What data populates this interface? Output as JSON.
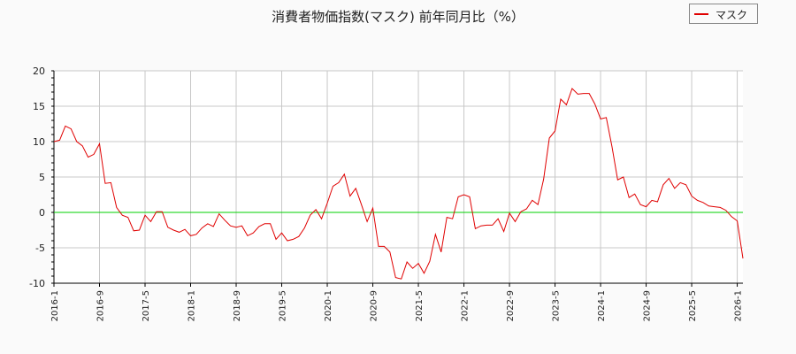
{
  "chart_data": {
    "type": "line",
    "title": "消費者物価指数(マスク) 前年同月比（%）",
    "xlabel": "",
    "ylabel": "",
    "ylim": [
      -10,
      20
    ],
    "yticks": [
      -10,
      -5,
      0,
      5,
      10,
      15,
      20
    ],
    "xtick_labels": [
      "2016-1",
      "2016-9",
      "2017-5",
      "2018-1",
      "2018-9",
      "2019-5",
      "2020-1",
      "2020-9",
      "2021-5",
      "2022-1",
      "2022-9",
      "2023-5",
      "2024-1",
      "2024-9",
      "2025-5",
      "2026-1"
    ],
    "grid": true,
    "legend_position": "top-right",
    "series": [
      {
        "name": "マスク",
        "color": "#e00000",
        "values": [
          10,
          10.2,
          12.2,
          11.8,
          10,
          9.4,
          7.8,
          8.2,
          9.7,
          4.1,
          4.2,
          0.7,
          -0.4,
          -0.7,
          -2.6,
          -2.5,
          -0.4,
          -1.3,
          0.1,
          0.1,
          -2.1,
          -2.5,
          -2.8,
          -2.4,
          -3.3,
          -3.1,
          -2.2,
          -1.6,
          -2,
          -0.2,
          -1.1,
          -1.9,
          -2.1,
          -1.9,
          -3.3,
          -2.9,
          -2,
          -1.6,
          -1.6,
          -3.8,
          -2.9,
          -4,
          -3.8,
          -3.4,
          -2.2,
          -0.4,
          0.4,
          -0.9,
          1.3,
          3.7,
          4.2,
          5.4,
          2.3,
          3.4,
          1.1,
          -1.3,
          0.6,
          -4.8,
          -4.8,
          -5.6,
          -9.2,
          -9.4,
          -7,
          -7.9,
          -7.2,
          -8.6,
          -6.9,
          -3.1,
          -5.6,
          -0.7,
          -0.9,
          2.2,
          2.5,
          2.2,
          -2.3,
          -1.9,
          -1.8,
          -1.8,
          -0.9,
          -2.7,
          -0.1,
          -1.3,
          0.1,
          0.5,
          1.7,
          1.1,
          4.7,
          10.5,
          11.5,
          16,
          15.2,
          17.5,
          16.7,
          16.8,
          16.8,
          15.3,
          13.2,
          13.4,
          9.3,
          4.6,
          5,
          2.1,
          2.6,
          1.1,
          0.8,
          1.7,
          1.5,
          3.9,
          4.8,
          3.4,
          4.2,
          3.9,
          2.3,
          1.7,
          1.4,
          0.9,
          0.8,
          0.7,
          0.3,
          -0.6,
          -1.2,
          -6.5
        ]
      },
      {
        "name": "zero-line",
        "color": "#00d000",
        "values": [
          0
        ]
      }
    ]
  }
}
